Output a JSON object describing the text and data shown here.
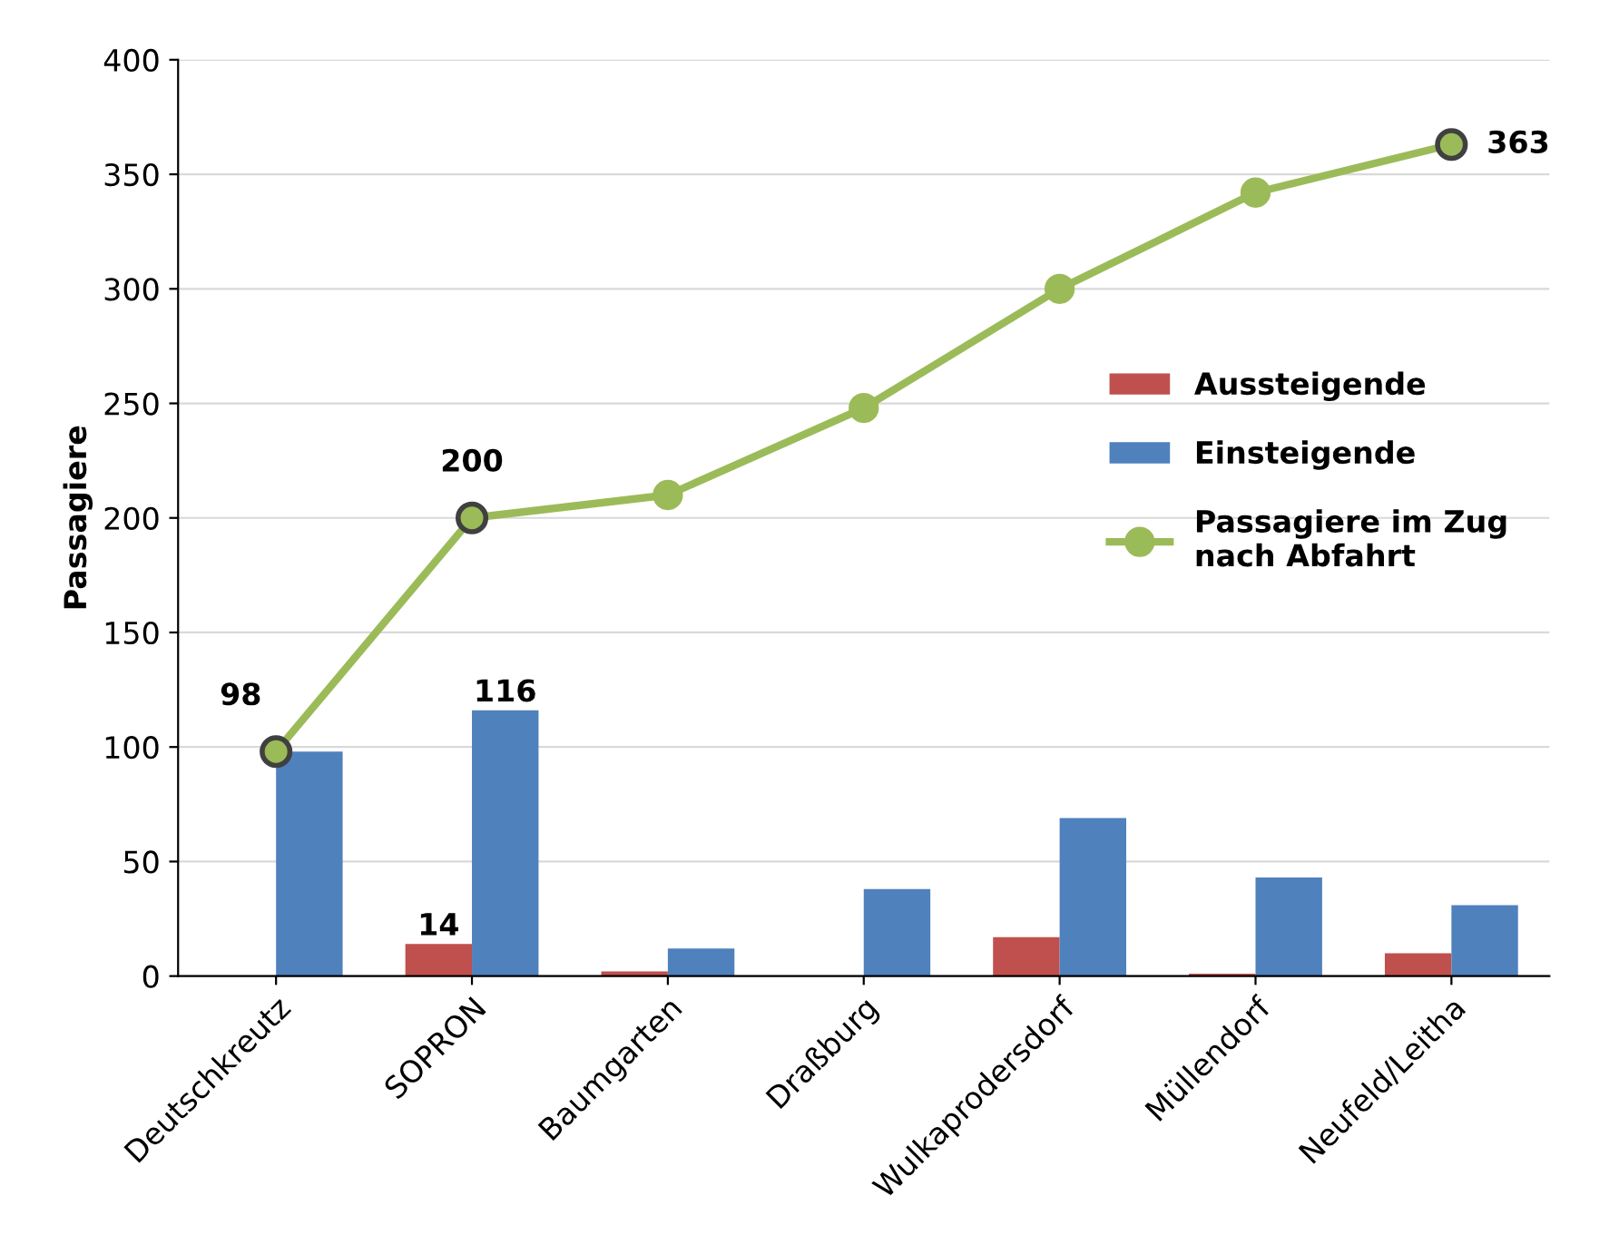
{
  "chart_data": {
    "type": "bar",
    "ylabel": "Passagiere",
    "categories": [
      "Deutschkreutz",
      "SOPRON",
      "Baumgarten",
      "Draßburg",
      "Wulkaprodersdorf",
      "Müllendorf",
      "Neufeld/Leitha"
    ],
    "series": [
      {
        "name": "Aussteigende",
        "color": "#c0504d",
        "values": [
          0,
          14,
          2,
          0,
          17,
          1,
          10
        ],
        "value_labels": [
          null,
          "14",
          null,
          null,
          null,
          null,
          null
        ]
      },
      {
        "name": "Einsteigende",
        "color": "#4f81bd",
        "values": [
          98,
          116,
          12,
          38,
          69,
          43,
          31
        ],
        "value_labels": [
          null,
          "116",
          null,
          null,
          null,
          null,
          null
        ]
      },
      {
        "name": "Passagiere im Zug\nnach Abfahrt",
        "type": "line",
        "color": "#9bbb59",
        "marker": "circle",
        "values": [
          98,
          200,
          210,
          248,
          300,
          342,
          363
        ],
        "value_labels": [
          "98",
          "200",
          null,
          null,
          null,
          null,
          "363"
        ]
      }
    ],
    "ylim": [
      0,
      400
    ],
    "yticks": [
      0,
      50,
      100,
      150,
      200,
      250,
      300,
      350,
      400
    ],
    "grid": "y",
    "legend": "right"
  }
}
